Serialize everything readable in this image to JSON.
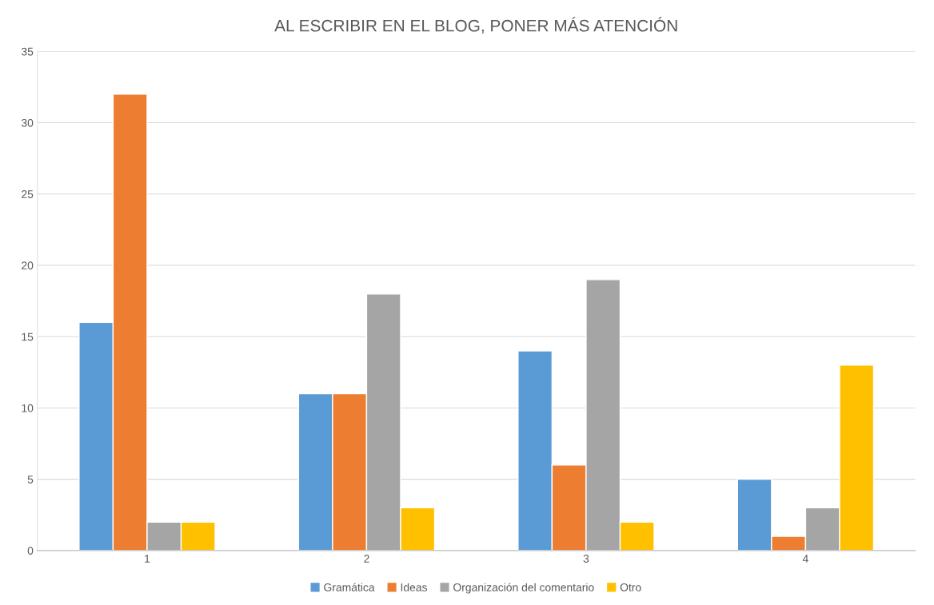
{
  "chart_data": {
    "type": "bar",
    "title": "AL ESCRIBIR EN EL BLOG, PONER MÁS ATENCIÓN",
    "categories": [
      "1",
      "2",
      "3",
      "4"
    ],
    "series": [
      {
        "name": "Gramática",
        "color": "#5b9bd5",
        "values": [
          16,
          11,
          14,
          5
        ]
      },
      {
        "name": "Ideas",
        "color": "#ed7d31",
        "values": [
          32,
          11,
          6,
          1
        ]
      },
      {
        "name": "Organización del comentario",
        "color": "#a5a5a5",
        "values": [
          2,
          18,
          19,
          3
        ]
      },
      {
        "name": "Otro",
        "color": "#ffc000",
        "values": [
          2,
          3,
          2,
          13
        ]
      }
    ],
    "ylim": [
      0,
      35
    ],
    "yticks": [
      0,
      5,
      10,
      15,
      20,
      25,
      30,
      35
    ],
    "grid": "y",
    "legend": "bottom"
  }
}
